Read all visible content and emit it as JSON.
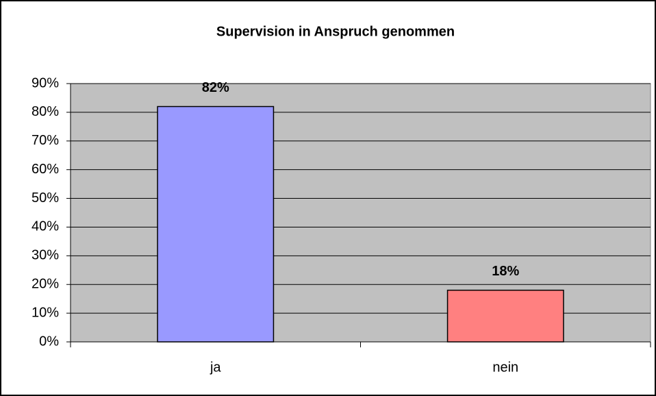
{
  "chart_data": {
    "type": "bar",
    "title": "Supervision in Anspruch genommen",
    "categories": [
      "ja",
      "nein"
    ],
    "values": [
      82,
      18
    ],
    "value_labels": [
      "82%",
      "18%"
    ],
    "colors": [
      "#9999ff",
      "#ff8080"
    ],
    "ylim": [
      0,
      90
    ],
    "yticks": [
      {
        "value": 0,
        "label": "0%"
      },
      {
        "value": 10,
        "label": "10%"
      },
      {
        "value": 20,
        "label": "20%"
      },
      {
        "value": 30,
        "label": "30%"
      },
      {
        "value": 40,
        "label": "40%"
      },
      {
        "value": 50,
        "label": "50%"
      },
      {
        "value": 60,
        "label": "60%"
      },
      {
        "value": 70,
        "label": "70%"
      },
      {
        "value": 80,
        "label": "80%"
      },
      {
        "value": 90,
        "label": "90%"
      }
    ],
    "grid": true
  }
}
